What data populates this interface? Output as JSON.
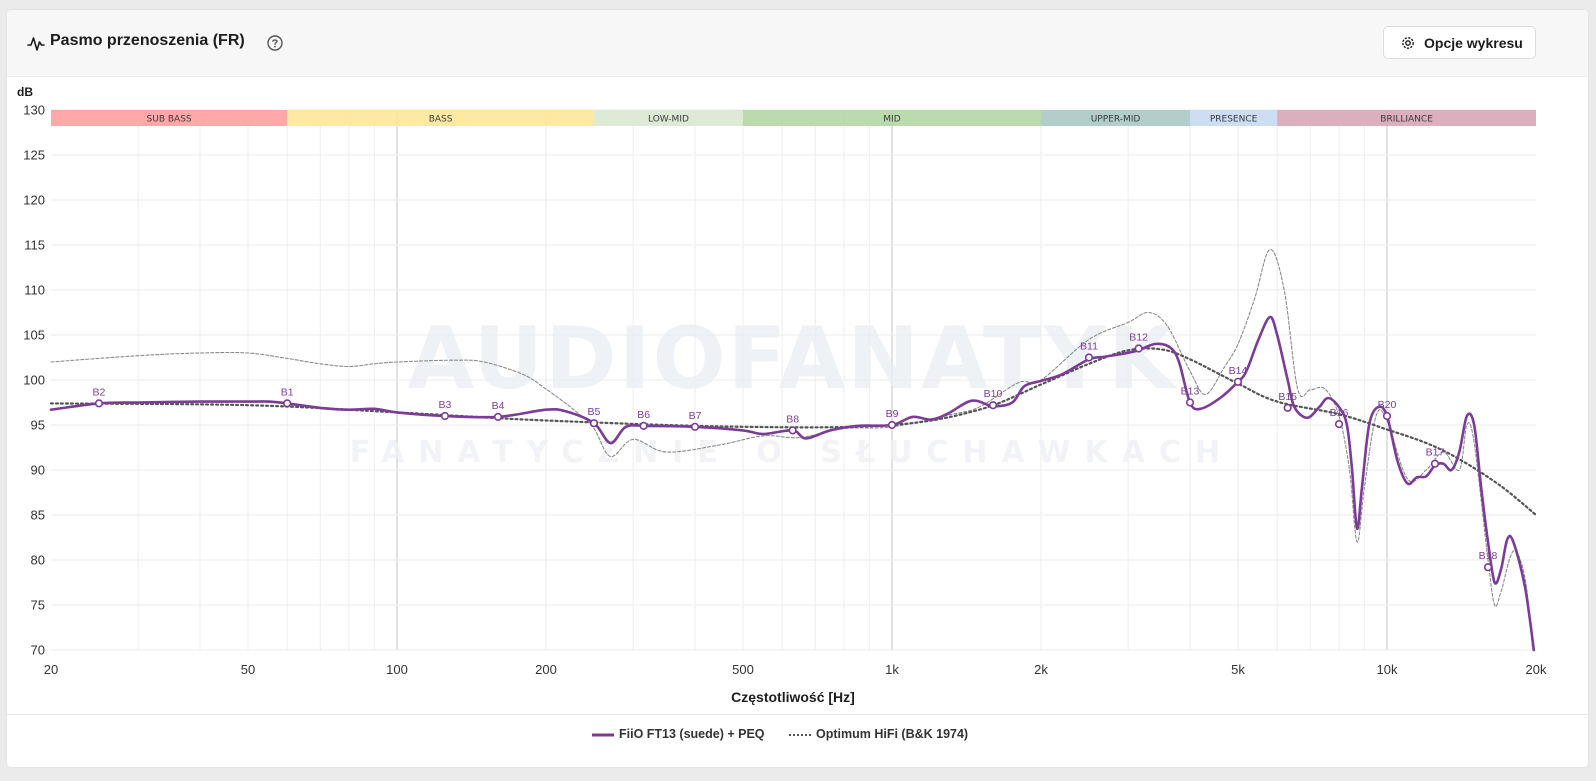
{
  "header": {
    "title": "Pasmo przenoszenia (FR)",
    "options_label": "Opcje wykresu"
  },
  "chart_data": {
    "type": "line",
    "title": "",
    "ylabel": "dB",
    "xlabel": "Częstotliwość [Hz]",
    "x_scale": "log",
    "xlim": [
      20,
      20000
    ],
    "ylim": [
      70,
      130
    ],
    "y_ticks": [
      70,
      75,
      80,
      85,
      90,
      95,
      100,
      105,
      110,
      115,
      120,
      125,
      130
    ],
    "x_ticks": [
      {
        "value": 20,
        "label": "20"
      },
      {
        "value": 50,
        "label": "50"
      },
      {
        "value": 100,
        "label": "100"
      },
      {
        "value": 200,
        "label": "200"
      },
      {
        "value": 500,
        "label": "500"
      },
      {
        "value": 1000,
        "label": "1k"
      },
      {
        "value": 2000,
        "label": "2k"
      },
      {
        "value": 5000,
        "label": "5k"
      },
      {
        "value": 10000,
        "label": "10k"
      },
      {
        "value": 20000,
        "label": "20k"
      }
    ],
    "grid": true,
    "bands": [
      {
        "label": "SUB BASS",
        "from": 20,
        "to": 60,
        "color": "#ff9e9e"
      },
      {
        "label": "BASS",
        "from": 60,
        "to": 250,
        "color": "#fde59a"
      },
      {
        "label": "LOW-MID",
        "from": 250,
        "to": 500,
        "color": "#d8e8d2"
      },
      {
        "label": "MID",
        "from": 500,
        "to": 2000,
        "color": "#b3d7a4"
      },
      {
        "label": "UPPER-MID",
        "from": 2000,
        "to": 4000,
        "color": "#a8c9c5"
      },
      {
        "label": "PRESENCE",
        "from": 4000,
        "to": 6000,
        "color": "#c8daf3"
      },
      {
        "label": "BRILLIANCE",
        "from": 6000,
        "to": 20000,
        "color": "#d8a6b8"
      }
    ],
    "watermark": {
      "main": "AUDIOFANATYK",
      "sub": "FANATYCZNIE O SŁUCHAWKACH"
    },
    "series": [
      {
        "name": "FiiO FT13 (suede) + PEQ",
        "color": "#7b3c96",
        "style": "solid",
        "points": [
          [
            20,
            96.7
          ],
          [
            25,
            97.4
          ],
          [
            30,
            97.5
          ],
          [
            40,
            97.6
          ],
          [
            50,
            97.6
          ],
          [
            55,
            97.6
          ],
          [
            60,
            97.4
          ],
          [
            70,
            96.9
          ],
          [
            80,
            96.7
          ],
          [
            90,
            96.8
          ],
          [
            100,
            96.4
          ],
          [
            125,
            96.0
          ],
          [
            160,
            95.9
          ],
          [
            200,
            96.7
          ],
          [
            220,
            96.5
          ],
          [
            250,
            95.2
          ],
          [
            270,
            93.0
          ],
          [
            290,
            94.8
          ],
          [
            320,
            94.9
          ],
          [
            400,
            94.8
          ],
          [
            500,
            94.4
          ],
          [
            550,
            94.0
          ],
          [
            630,
            94.4
          ],
          [
            670,
            93.5
          ],
          [
            750,
            94.4
          ],
          [
            850,
            94.9
          ],
          [
            1000,
            95.0
          ],
          [
            1100,
            95.9
          ],
          [
            1200,
            95.6
          ],
          [
            1300,
            96.3
          ],
          [
            1450,
            97.7
          ],
          [
            1600,
            97.1
          ],
          [
            1750,
            97.5
          ],
          [
            1850,
            99.3
          ],
          [
            2000,
            99.9
          ],
          [
            2200,
            100.6
          ],
          [
            2500,
            102.3
          ],
          [
            2700,
            102.6
          ],
          [
            3100,
            103.2
          ],
          [
            3400,
            104.0
          ],
          [
            3650,
            103.6
          ],
          [
            3800,
            102.0
          ],
          [
            4000,
            97.5
          ],
          [
            4200,
            96.8
          ],
          [
            4600,
            98.0
          ],
          [
            5000,
            99.8
          ],
          [
            5200,
            101.0
          ],
          [
            5500,
            104.5
          ],
          [
            5800,
            107.0
          ],
          [
            6000,
            105.0
          ],
          [
            6300,
            100.0
          ],
          [
            6500,
            97.0
          ],
          [
            6900,
            95.8
          ],
          [
            7300,
            97.0
          ],
          [
            7600,
            98.0
          ],
          [
            8000,
            97.0
          ],
          [
            8300,
            95.0
          ],
          [
            8500,
            90.0
          ],
          [
            8700,
            83.5
          ],
          [
            8900,
            88.0
          ],
          [
            9200,
            95.0
          ],
          [
            9600,
            97.0
          ],
          [
            10000,
            96.0
          ],
          [
            10500,
            91.0
          ],
          [
            11000,
            88.5
          ],
          [
            11500,
            89.2
          ],
          [
            12000,
            89.3
          ],
          [
            12500,
            90.5
          ],
          [
            13000,
            90.7
          ],
          [
            13500,
            90.0
          ],
          [
            14000,
            92.0
          ],
          [
            14500,
            96.0
          ],
          [
            15000,
            95.0
          ],
          [
            15500,
            88.0
          ],
          [
            16000,
            82.0
          ],
          [
            16500,
            77.5
          ],
          [
            17000,
            79.0
          ],
          [
            17500,
            82.3
          ],
          [
            18000,
            82.0
          ],
          [
            19000,
            77.0
          ],
          [
            19800,
            70.0
          ]
        ],
        "markers": [
          {
            "label": "B2",
            "f": 25,
            "db": 97.4
          },
          {
            "label": "B1",
            "f": 60,
            "db": 97.4
          },
          {
            "label": "B3",
            "f": 125,
            "db": 96.0
          },
          {
            "label": "B4",
            "f": 160,
            "db": 95.9
          },
          {
            "label": "B5",
            "f": 250,
            "db": 95.2
          },
          {
            "label": "B6",
            "f": 315,
            "db": 94.9
          },
          {
            "label": "B7",
            "f": 400,
            "db": 94.8
          },
          {
            "label": "B8",
            "f": 630,
            "db": 94.4
          },
          {
            "label": "B9",
            "f": 1000,
            "db": 95.0
          },
          {
            "label": "B10",
            "f": 1600,
            "db": 97.2
          },
          {
            "label": "B11",
            "f": 2500,
            "db": 102.5
          },
          {
            "label": "B12",
            "f": 3150,
            "db": 103.5
          },
          {
            "label": "B13",
            "f": 4000,
            "db": 97.5
          },
          {
            "label": "B14",
            "f": 5000,
            "db": 99.8
          },
          {
            "label": "B15",
            "f": 6300,
            "db": 96.9
          },
          {
            "label": "B16",
            "f": 8000,
            "db": 95.1
          },
          {
            "label": "B20",
            "f": 10000,
            "db": 96.0
          },
          {
            "label": "B17",
            "f": 12500,
            "db": 90.7
          },
          {
            "label": "B18",
            "f": 16000,
            "db": 79.2
          }
        ]
      },
      {
        "name": "Optimum HiFi (B&K 1974)",
        "color": "#555555",
        "style": "dotted",
        "points": [
          [
            20,
            97.4
          ],
          [
            50,
            97.2
          ],
          [
            100,
            96.4
          ],
          [
            200,
            95.5
          ],
          [
            500,
            94.8
          ],
          [
            1000,
            95.0
          ],
          [
            1500,
            96.7
          ],
          [
            2000,
            99.5
          ],
          [
            2500,
            101.8
          ],
          [
            3000,
            103.3
          ],
          [
            3500,
            103.4
          ],
          [
            4000,
            102.3
          ],
          [
            5000,
            99.6
          ],
          [
            6000,
            97.6
          ],
          [
            8000,
            96.2
          ],
          [
            10000,
            94.5
          ],
          [
            12000,
            93.0
          ],
          [
            14000,
            91.2
          ],
          [
            17000,
            88.2
          ],
          [
            20000,
            85.0
          ]
        ]
      },
      {
        "name": "",
        "color": "#8a8a8a",
        "style": "dashed-thin",
        "points": [
          [
            20,
            102.0
          ],
          [
            30,
            102.7
          ],
          [
            40,
            103.0
          ],
          [
            50,
            103.0
          ],
          [
            60,
            102.4
          ],
          [
            70,
            101.8
          ],
          [
            80,
            101.5
          ],
          [
            90,
            101.8
          ],
          [
            100,
            102.0
          ],
          [
            130,
            102.2
          ],
          [
            150,
            102.0
          ],
          [
            180,
            100.6
          ],
          [
            200,
            99.0
          ],
          [
            230,
            96.5
          ],
          [
            250,
            94.6
          ],
          [
            270,
            91.5
          ],
          [
            300,
            93.4
          ],
          [
            350,
            92.0
          ],
          [
            450,
            92.8
          ],
          [
            550,
            93.8
          ],
          [
            650,
            93.6
          ],
          [
            800,
            94.6
          ],
          [
            1000,
            94.8
          ],
          [
            1300,
            96.1
          ],
          [
            1500,
            97.0
          ],
          [
            1800,
            99.7
          ],
          [
            2000,
            100.0
          ],
          [
            2500,
            104.5
          ],
          [
            3000,
            106.4
          ],
          [
            3300,
            107.5
          ],
          [
            3600,
            106.0
          ],
          [
            4000,
            101.0
          ],
          [
            4300,
            98.4
          ],
          [
            4700,
            101.5
          ],
          [
            5000,
            104.0
          ],
          [
            5400,
            109.0
          ],
          [
            5800,
            114.5
          ],
          [
            6200,
            110.0
          ],
          [
            6600,
            99.0
          ],
          [
            7000,
            98.9
          ],
          [
            7500,
            99.0
          ],
          [
            8000,
            96.0
          ],
          [
            8400,
            90.0
          ],
          [
            8700,
            82.0
          ],
          [
            9000,
            88.0
          ],
          [
            9500,
            96.0
          ],
          [
            10000,
            95.5
          ],
          [
            11000,
            89.0
          ],
          [
            12000,
            90.0
          ],
          [
            13000,
            92.0
          ],
          [
            14000,
            90.0
          ],
          [
            14500,
            95.0
          ],
          [
            15000,
            93.0
          ],
          [
            16000,
            80.0
          ],
          [
            16500,
            75.0
          ],
          [
            17000,
            76.5
          ],
          [
            18000,
            81.0
          ],
          [
            19000,
            78.0
          ],
          [
            19700,
            70.0
          ]
        ]
      }
    ]
  },
  "legend": [
    {
      "name": "FiiO FT13 (suede) + PEQ",
      "style": "solid",
      "color": "#7b3c96"
    },
    {
      "name": "Optimum HiFi (B&K 1974)",
      "style": "dotted",
      "color": "#555555"
    }
  ]
}
